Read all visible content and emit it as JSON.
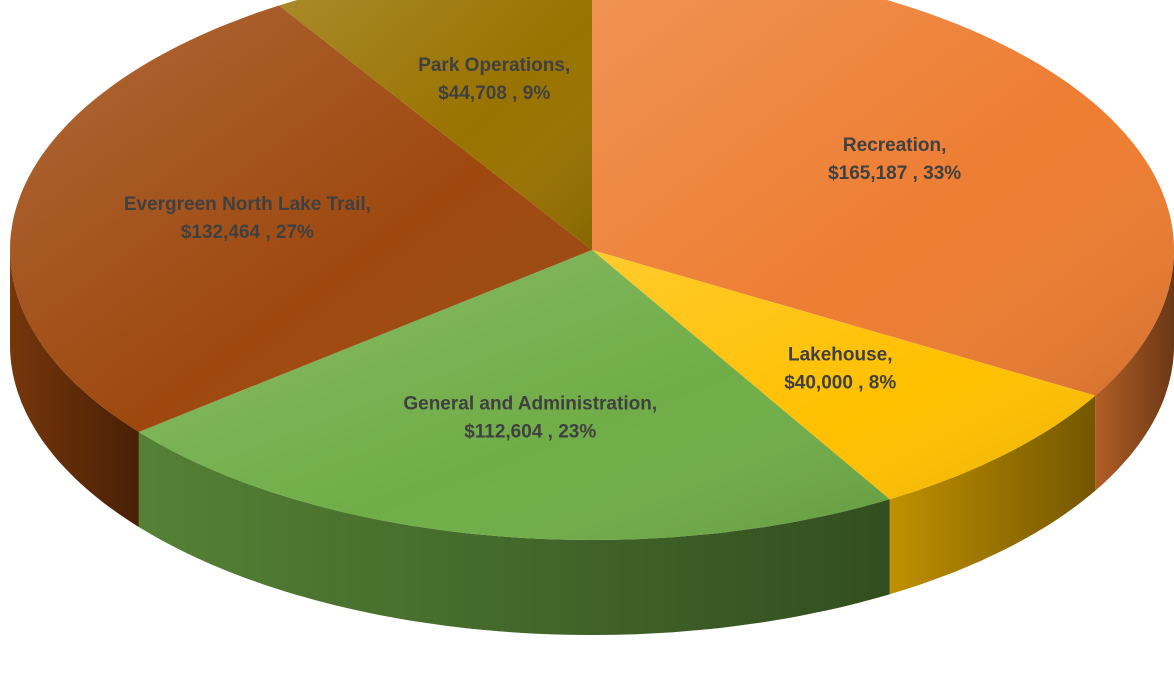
{
  "chart_data": {
    "type": "pie3d",
    "categories": [
      "Recreation",
      "Lakehouse",
      "General and Administration",
      "Evergreen North Lake Trail",
      "Park Operations"
    ],
    "values": [
      165187,
      40000,
      112604,
      132464,
      44708
    ],
    "value_labels": [
      "$165,187",
      "$40,000",
      "$112,604",
      "$132,464",
      "$44,708"
    ],
    "percentages": [
      33,
      8,
      23,
      27,
      9
    ],
    "percent_labels": [
      "33%",
      "8%",
      "23%",
      "27%",
      "9%"
    ],
    "name_separator": ",",
    "value_separator": " , ",
    "colors": [
      "#ed7d31",
      "#ffc000",
      "#70ad47",
      "#9e480e",
      "#997300"
    ]
  }
}
